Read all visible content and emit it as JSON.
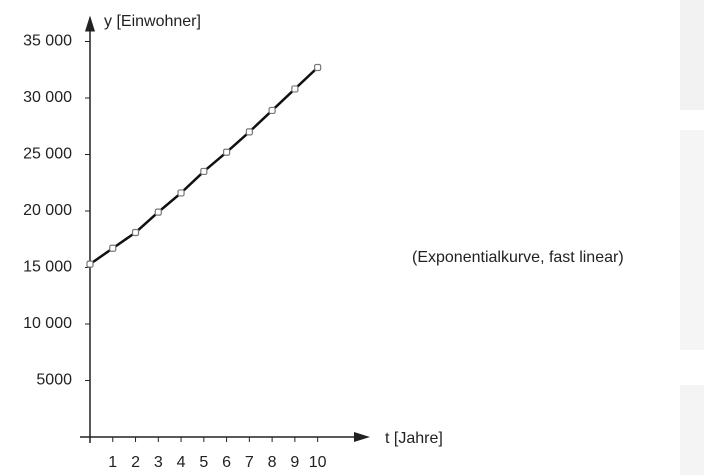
{
  "chart_data": {
    "type": "line",
    "y_label": "y [Einwohner]",
    "x_label": "t [Jahre]",
    "annotation": "(Exponentialkurve, fast linear)",
    "x": [
      0,
      1,
      2,
      3,
      4,
      5,
      6,
      7,
      8,
      9,
      10
    ],
    "series": [
      {
        "color": "#111111",
        "values": [
          15300,
          16700,
          18100,
          19900,
          21600,
          23500,
          25200,
          27000,
          28900,
          30800,
          32700
        ]
      }
    ],
    "xlim": [
      0,
      12.3
    ],
    "xticks": [
      1,
      2,
      3,
      4,
      5,
      6,
      7,
      8,
      9,
      10
    ],
    "ylim": [
      0,
      37300
    ],
    "yticks": [
      5000,
      {
        "value": 10000,
        "label": "10 000"
      },
      {
        "value": 15000,
        "label": "15 000"
      },
      {
        "value": 20000,
        "label": "20 000"
      },
      {
        "value": 25000,
        "label": "25 000"
      },
      {
        "value": 30000,
        "label": "30 000"
      },
      {
        "value": 35000,
        "label": "35 000"
      }
    ]
  }
}
